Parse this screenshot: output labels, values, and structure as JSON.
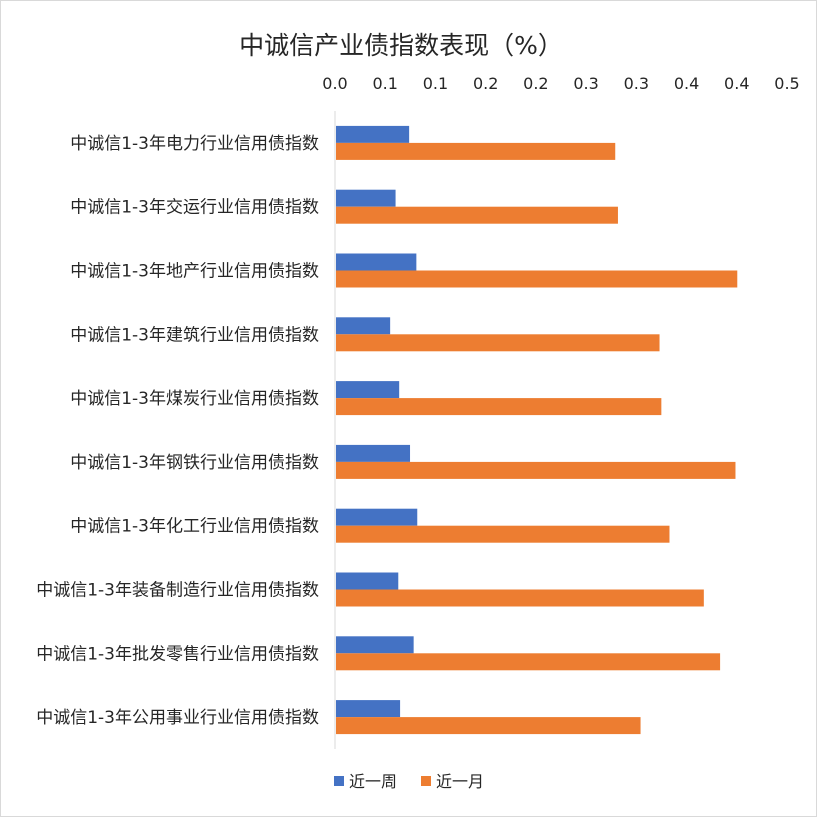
{
  "chart_data": {
    "type": "bar",
    "orientation": "horizontal",
    "title": "中诚信产业债指数表现（%）",
    "x_axis_position": "top",
    "xlim": [
      0,
      0.5
    ],
    "x_tick_labels": [
      "0.0",
      "0.1",
      "0.1",
      "0.2",
      "0.2",
      "0.3",
      "0.3",
      "0.4",
      "0.4",
      "0.5"
    ],
    "grid": false,
    "legend_position": "bottom",
    "categories": [
      "中诚信1-3年电力行业信用债指数",
      "中诚信1-3年交运行业信用债指数",
      "中诚信1-3年地产行业信用债指数",
      "中诚信1-3年建筑行业信用债指数",
      "中诚信1-3年煤炭行业信用债指数",
      "中诚信1-3年钢铁行业信用债指数",
      "中诚信1-3年化工行业信用债指数",
      "中诚信1-3年装备制造行业信用债指数",
      "中诚信1-3年批发零售行业信用债指数",
      "中诚信1-3年公用事业行业信用债指数"
    ],
    "series": [
      {
        "name": "近一周",
        "color": "#4472c4",
        "values": [
          0.082,
          0.067,
          0.09,
          0.061,
          0.071,
          0.083,
          0.091,
          0.07,
          0.087,
          0.072
        ]
      },
      {
        "name": "近一月",
        "color": "#ed7d31",
        "values": [
          0.31,
          0.313,
          0.445,
          0.359,
          0.361,
          0.443,
          0.37,
          0.408,
          0.426,
          0.338
        ]
      }
    ]
  }
}
